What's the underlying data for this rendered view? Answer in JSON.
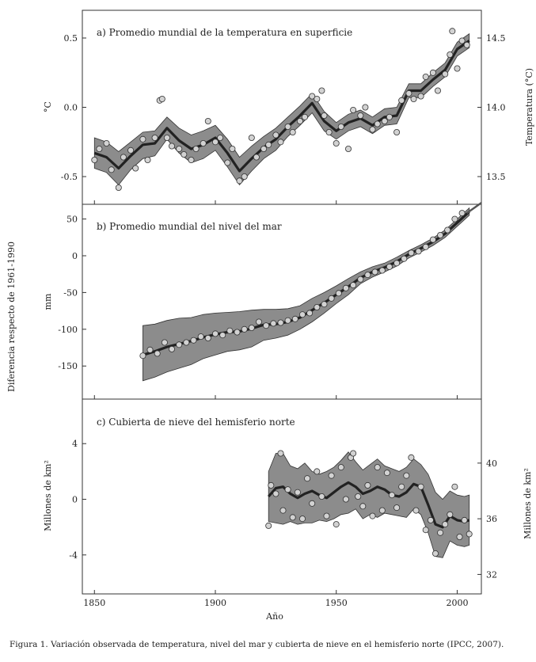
{
  "caption": "Figura 1. Variación observada de temperatura, nivel del mar y cubierta de nieve en el hemisferio norte (IPCC, 2007).",
  "x_axis": {
    "label": "Año",
    "ticks": [
      "1850",
      "1900",
      "1950",
      "2000"
    ]
  },
  "shared_ylabel": "Diferencia respecto de 1961-1990",
  "colors": {
    "band": "#8c8c8c",
    "line": "#222222",
    "point_fill": "#d2d2d2",
    "point_stroke": "#333333"
  },
  "chart_data": [
    {
      "type": "line",
      "title": "a) Promedio mundial de la temperatura en superficie",
      "xlim": [
        1845,
        2010
      ],
      "ylim": [
        -0.7,
        0.7
      ],
      "ylabel": "°C",
      "yticks": [
        -0.5,
        0.0,
        0.5
      ],
      "ytick_labels": [
        "-0.5",
        "0.0",
        "0.5"
      ],
      "y2label": "Temperatura (°C)",
      "y2_ticks": [
        "14.5",
        "14.0",
        "13.5"
      ],
      "y2_tick_values": [
        0.5,
        0.0,
        -0.5
      ],
      "smooth": {
        "x": [
          1850,
          1855,
          1860,
          1865,
          1870,
          1875,
          1880,
          1885,
          1890,
          1895,
          1900,
          1905,
          1910,
          1915,
          1920,
          1925,
          1930,
          1935,
          1940,
          1945,
          1950,
          1955,
          1960,
          1965,
          1970,
          1975,
          1980,
          1985,
          1990,
          1995,
          2000,
          2005
        ],
        "y": [
          -0.33,
          -0.36,
          -0.44,
          -0.35,
          -0.27,
          -0.26,
          -0.15,
          -0.24,
          -0.3,
          -0.27,
          -0.22,
          -0.33,
          -0.46,
          -0.37,
          -0.29,
          -0.23,
          -0.14,
          -0.06,
          0.03,
          -0.1,
          -0.17,
          -0.11,
          -0.08,
          -0.13,
          -0.07,
          -0.06,
          0.12,
          0.12,
          0.2,
          0.27,
          0.42,
          0.48
        ]
      },
      "band_upper": [
        -0.22,
        -0.25,
        -0.32,
        -0.25,
        -0.18,
        -0.17,
        -0.07,
        -0.15,
        -0.2,
        -0.17,
        -0.13,
        -0.23,
        -0.36,
        -0.28,
        -0.21,
        -0.15,
        -0.07,
        0.01,
        0.1,
        -0.03,
        -0.11,
        -0.05,
        -0.02,
        -0.07,
        -0.01,
        0.0,
        0.17,
        0.17,
        0.25,
        0.32,
        0.47,
        0.53
      ],
      "band_lower": [
        -0.44,
        -0.47,
        -0.56,
        -0.45,
        -0.37,
        -0.35,
        -0.23,
        -0.33,
        -0.4,
        -0.37,
        -0.31,
        -0.43,
        -0.56,
        -0.46,
        -0.37,
        -0.31,
        -0.21,
        -0.13,
        -0.04,
        -0.17,
        -0.23,
        -0.17,
        -0.14,
        -0.19,
        -0.13,
        -0.12,
        0.07,
        0.07,
        0.15,
        0.22,
        0.37,
        0.43
      ],
      "points": {
        "x": [
          1850,
          1852,
          1855,
          1857,
          1860,
          1862,
          1865,
          1867,
          1870,
          1872,
          1875,
          1877,
          1878,
          1880,
          1882,
          1885,
          1887,
          1890,
          1892,
          1895,
          1897,
          1900,
          1902,
          1905,
          1907,
          1910,
          1912,
          1915,
          1917,
          1920,
          1922,
          1925,
          1927,
          1930,
          1932,
          1935,
          1937,
          1940,
          1942,
          1944,
          1945,
          1947,
          1950,
          1952,
          1955,
          1957,
          1960,
          1962,
          1965,
          1967,
          1970,
          1972,
          1975,
          1977,
          1980,
          1982,
          1985,
          1987,
          1990,
          1992,
          1995,
          1997,
          1998,
          2000,
          2002,
          2004
        ],
        "y": [
          -0.38,
          -0.3,
          -0.26,
          -0.45,
          -0.58,
          -0.36,
          -0.31,
          -0.44,
          -0.23,
          -0.38,
          -0.22,
          0.05,
          0.06,
          -0.22,
          -0.28,
          -0.3,
          -0.34,
          -0.38,
          -0.3,
          -0.26,
          -0.1,
          -0.25,
          -0.22,
          -0.4,
          -0.3,
          -0.53,
          -0.5,
          -0.22,
          -0.36,
          -0.3,
          -0.27,
          -0.2,
          -0.25,
          -0.14,
          -0.18,
          -0.1,
          -0.07,
          0.08,
          0.06,
          0.12,
          -0.06,
          -0.18,
          -0.26,
          -0.14,
          -0.3,
          -0.02,
          -0.06,
          0.0,
          -0.16,
          -0.12,
          -0.1,
          -0.07,
          -0.18,
          0.05,
          0.1,
          0.06,
          0.08,
          0.22,
          0.25,
          0.12,
          0.24,
          0.38,
          0.55,
          0.28,
          0.48,
          0.45
        ]
      }
    },
    {
      "type": "line",
      "title": "b) Promedio mundial del nivel del mar",
      "xlim": [
        1845,
        2010
      ],
      "ylim": [
        -195,
        70
      ],
      "ylabel": "mm",
      "yticks": [
        -150,
        -100,
        -50,
        0,
        50
      ],
      "ytick_labels": [
        "-150",
        "-100",
        "-50",
        "0",
        "50"
      ],
      "smooth": {
        "x": [
          1870,
          1875,
          1880,
          1885,
          1890,
          1895,
          1900,
          1905,
          1910,
          1915,
          1920,
          1925,
          1930,
          1935,
          1940,
          1945,
          1950,
          1955,
          1960,
          1965,
          1970,
          1975,
          1980,
          1985,
          1990,
          1995,
          2000,
          2005
        ],
        "y": [
          -135,
          -130,
          -124,
          -120,
          -116,
          -111,
          -107,
          -104,
          -103,
          -99,
          -94,
          -93,
          -90,
          -84,
          -74,
          -64,
          -53,
          -42,
          -30,
          -22,
          -16,
          -8,
          2,
          10,
          19,
          30,
          45,
          60
        ]
      },
      "band_upper": [
        -95,
        -93,
        -88,
        -85,
        -84,
        -80,
        -78,
        -77,
        -76,
        -74,
        -73,
        -73,
        -72,
        -68,
        -58,
        -50,
        -41,
        -31,
        -22,
        -15,
        -10,
        -2,
        7,
        15,
        24,
        35,
        50,
        65
      ],
      "band_lower": [
        -170,
        -165,
        -158,
        -153,
        -148,
        -140,
        -135,
        -130,
        -128,
        -124,
        -115,
        -112,
        -108,
        -100,
        -90,
        -78,
        -65,
        -53,
        -38,
        -29,
        -22,
        -14,
        -3,
        5,
        14,
        25,
        40,
        55
      ],
      "trend_extension": {
        "x": [
          2004,
          2010
        ],
        "y": [
          58,
          72
        ]
      },
      "points": {
        "x": [
          1870,
          1873,
          1876,
          1879,
          1882,
          1885,
          1888,
          1891,
          1894,
          1897,
          1900,
          1903,
          1906,
          1909,
          1912,
          1915,
          1918,
          1921,
          1924,
          1927,
          1930,
          1933,
          1936,
          1939,
          1942,
          1945,
          1948,
          1951,
          1954,
          1957,
          1960,
          1963,
          1966,
          1969,
          1972,
          1975,
          1978,
          1981,
          1984,
          1987,
          1990,
          1993,
          1996,
          1999,
          2002
        ],
        "y": [
          -136,
          -128,
          -133,
          -118,
          -127,
          -121,
          -118,
          -115,
          -110,
          -112,
          -106,
          -108,
          -102,
          -104,
          -100,
          -98,
          -90,
          -95,
          -92,
          -91,
          -88,
          -86,
          -80,
          -78,
          -70,
          -66,
          -58,
          -51,
          -44,
          -40,
          -32,
          -26,
          -22,
          -20,
          -15,
          -10,
          -4,
          4,
          6,
          12,
          22,
          28,
          35,
          50,
          58
        ]
      }
    },
    {
      "type": "line",
      "title": "c) Cubierta de nieve del hemisferio norte",
      "xlim": [
        1845,
        2010
      ],
      "ylim": [
        -6.8,
        7.2
      ],
      "ylabel": "Millones de km²",
      "yticks": [
        -4,
        0,
        4
      ],
      "ytick_labels": [
        "-4",
        "0",
        "4"
      ],
      "y2label": "Millones de km²",
      "y2_ticks": [
        "40",
        "36",
        "32"
      ],
      "y2_tick_values": [
        2.6,
        -1.4,
        -5.4
      ],
      "smooth": {
        "x": [
          1922,
          1925,
          1928,
          1931,
          1934,
          1937,
          1940,
          1943,
          1946,
          1949,
          1952,
          1955,
          1958,
          1961,
          1964,
          1967,
          1970,
          1973,
          1976,
          1979,
          1982,
          1985,
          1988,
          1991,
          1994,
          1997,
          2000,
          2003,
          2005
        ],
        "y": [
          0.2,
          0.8,
          0.9,
          0.4,
          0.1,
          0.4,
          0.6,
          0.3,
          0.1,
          0.5,
          0.9,
          1.2,
          0.9,
          0.4,
          0.6,
          0.9,
          0.7,
          0.3,
          0.2,
          0.5,
          1.1,
          0.9,
          -0.4,
          -1.8,
          -2.0,
          -1.2,
          -1.5,
          -1.6,
          -1.5
        ]
      },
      "band_upper": [
        2.0,
        3.3,
        3.3,
        2.4,
        2.2,
        2.6,
        2.0,
        1.8,
        2.0,
        2.3,
        2.8,
        3.4,
        2.7,
        2.1,
        2.5,
        2.9,
        2.4,
        2.2,
        2.0,
        2.3,
        2.9,
        2.5,
        1.8,
        0.5,
        0.0,
        0.6,
        0.3,
        0.2,
        0.3
      ],
      "band_lower": [
        -1.6,
        -1.7,
        -1.8,
        -1.6,
        -1.8,
        -1.7,
        -1.7,
        -1.5,
        -1.6,
        -1.4,
        -1.1,
        -1.0,
        -0.7,
        -1.4,
        -1.1,
        -1.3,
        -1.0,
        -1.1,
        -1.2,
        -1.3,
        -0.7,
        -1.1,
        -2.4,
        -4.1,
        -4.2,
        -3.0,
        -3.3,
        -3.4,
        -3.3
      ],
      "points": {
        "x": [
          1922,
          1923,
          1925,
          1927,
          1928,
          1930,
          1932,
          1934,
          1936,
          1938,
          1940,
          1942,
          1944,
          1946,
          1948,
          1950,
          1952,
          1954,
          1956,
          1957,
          1959,
          1961,
          1963,
          1965,
          1967,
          1969,
          1971,
          1973,
          1975,
          1977,
          1979,
          1981,
          1983,
          1985,
          1987,
          1989,
          1991,
          1993,
          1995,
          1997,
          1999,
          2001,
          2003,
          2005
        ],
        "y": [
          -1.9,
          1.0,
          0.4,
          3.3,
          -0.8,
          0.7,
          -1.3,
          0.5,
          -1.4,
          1.5,
          -0.3,
          2.0,
          0.2,
          -1.2,
          1.7,
          -1.8,
          2.3,
          0.0,
          3.0,
          3.3,
          0.2,
          -0.5,
          1.0,
          -1.2,
          2.3,
          -0.8,
          1.9,
          0.3,
          -0.6,
          0.9,
          1.7,
          3.0,
          -0.8,
          0.9,
          -2.2,
          -1.5,
          -3.9,
          -2.4,
          -1.8,
          -1.1,
          0.9,
          -2.7,
          -1.5,
          -2.5
        ]
      }
    }
  ]
}
